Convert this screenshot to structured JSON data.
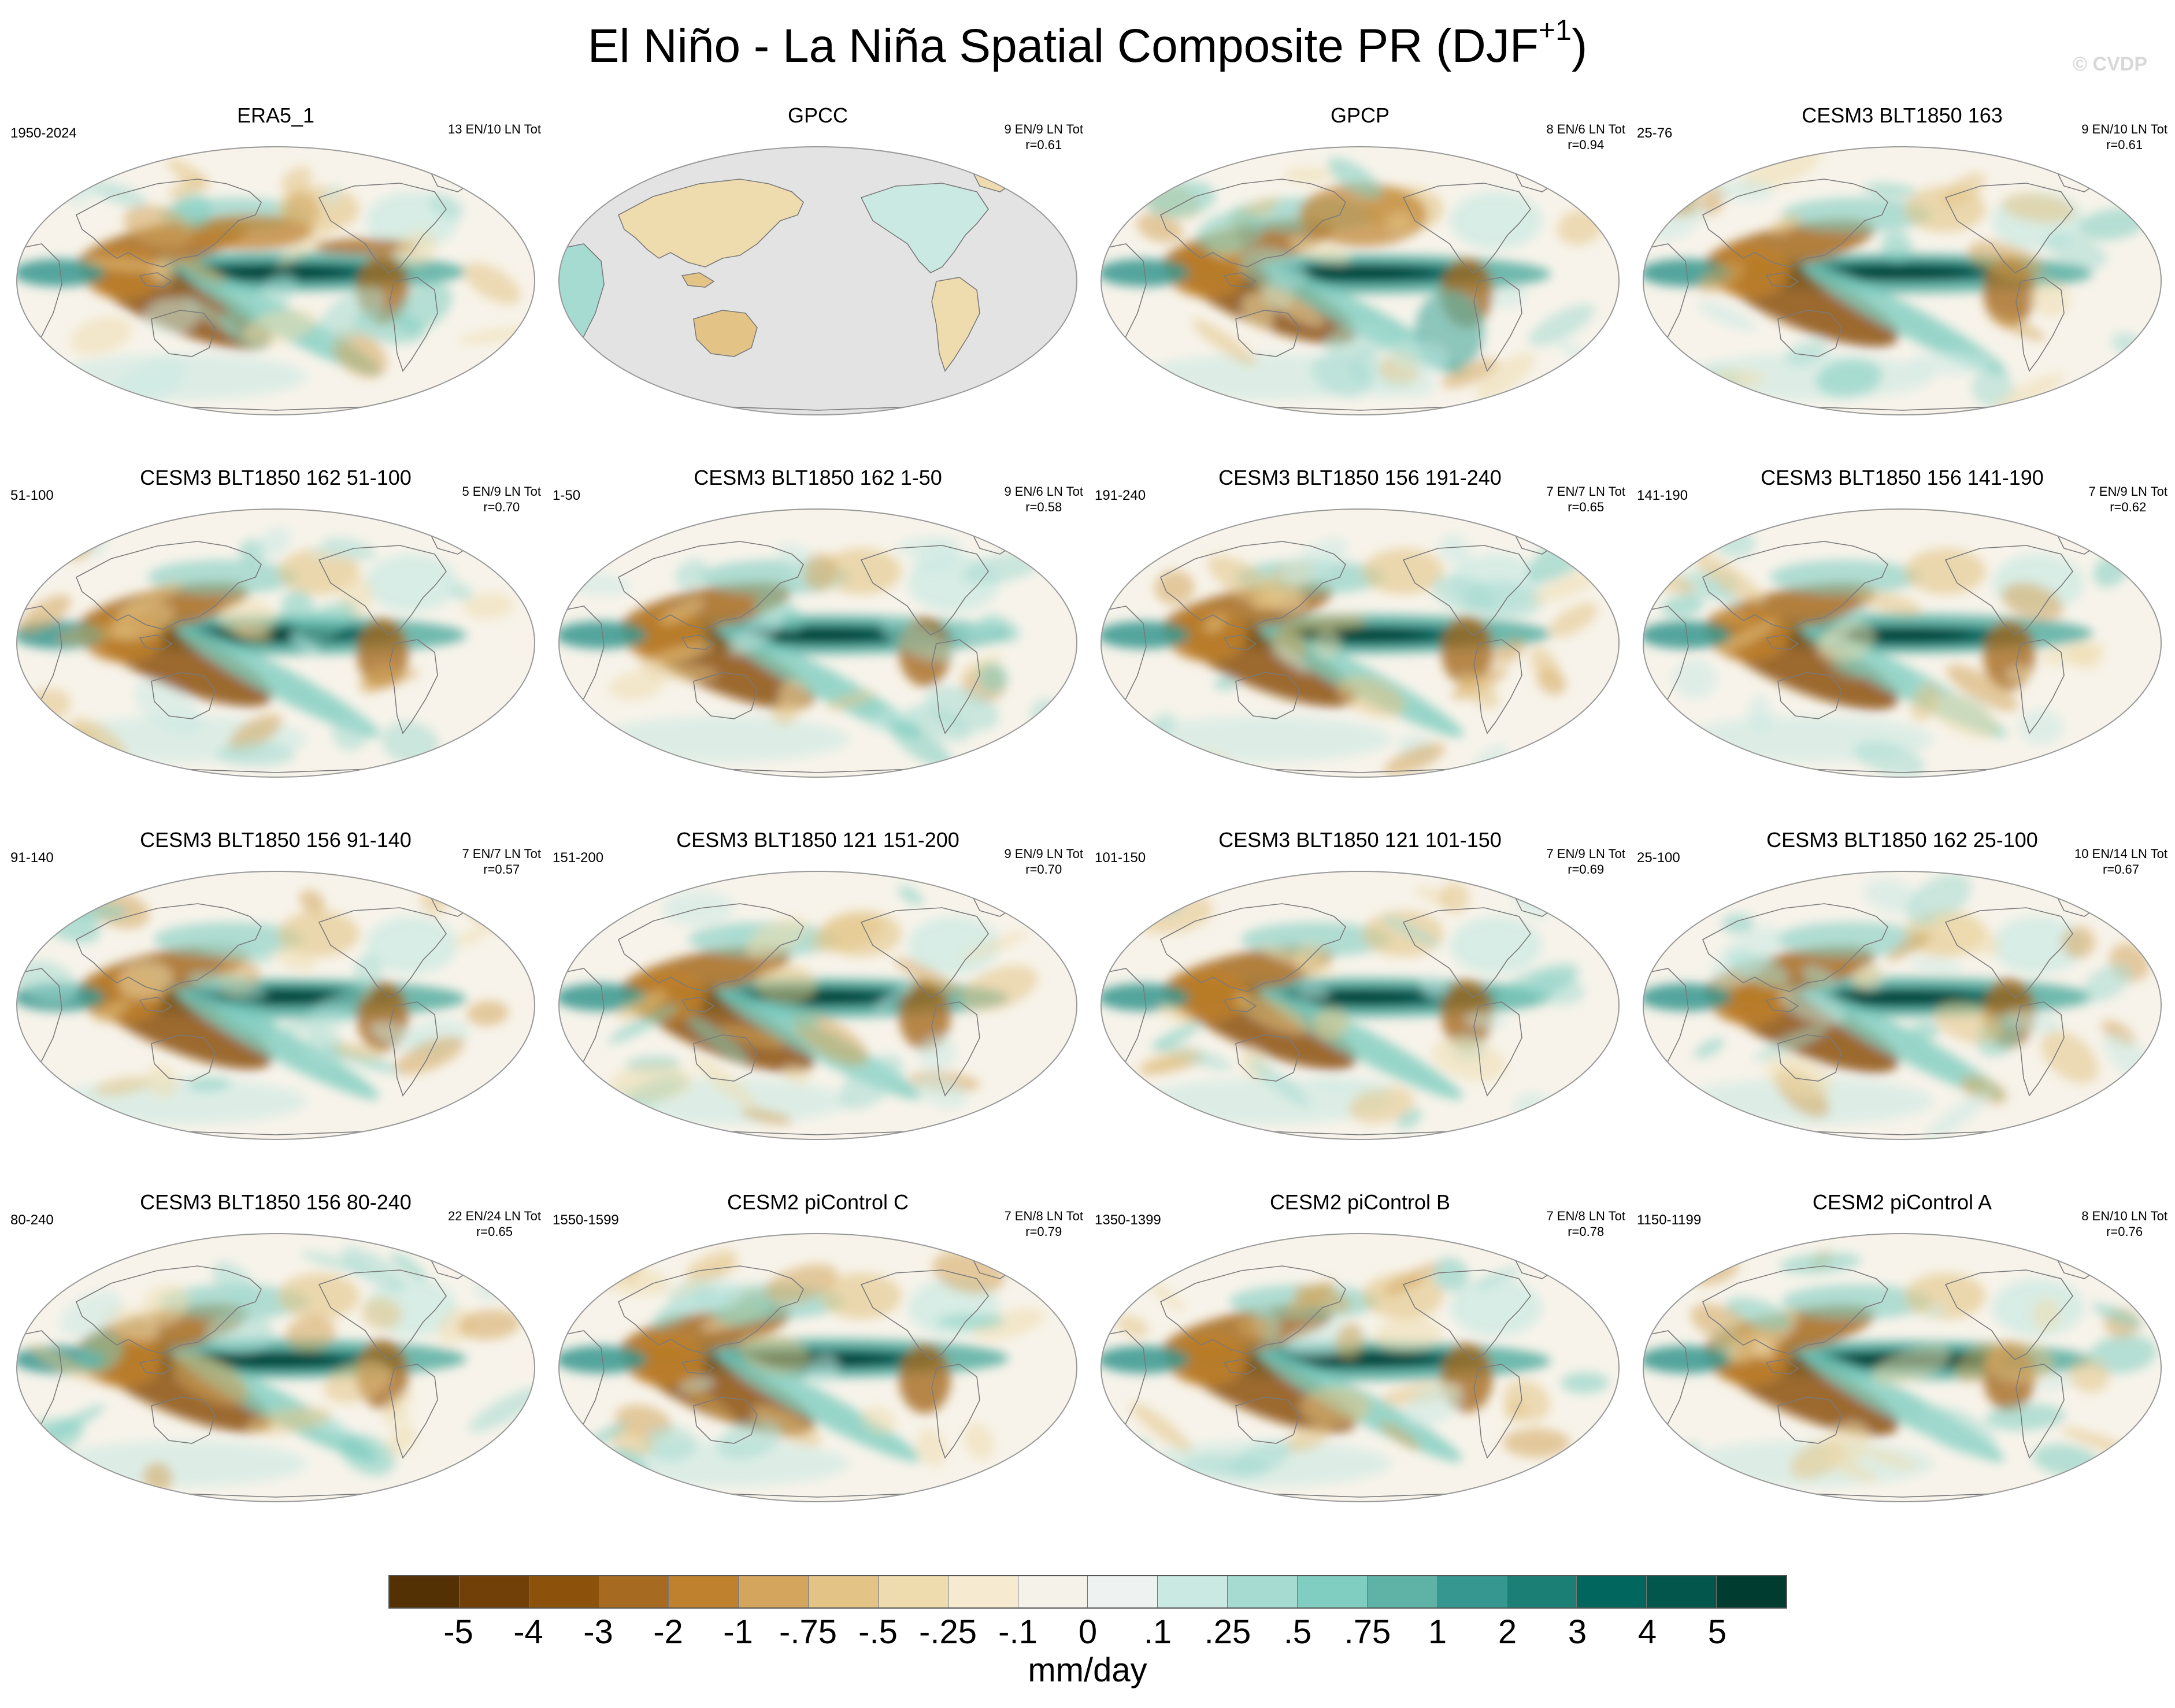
{
  "title": {
    "text": "El Niño - La Niña Spatial Composite PR (DJF",
    "sup": "+1",
    "close": ")"
  },
  "watermark": "© CVDP",
  "colors": {
    "ocean": "#f7f3ea",
    "land_missing": "#e3e3e3",
    "coast": "#7a7a7a",
    "outline": "#999999"
  },
  "panels": [
    {
      "title": "ERA5_1",
      "left": "1950-2024",
      "right": "13 EN/10 LN Tot",
      "r": "",
      "variant": "obs"
    },
    {
      "title": "GPCC",
      "left": "",
      "right": "9 EN/9 LN Tot",
      "r": "r=0.61",
      "variant": "land"
    },
    {
      "title": "GPCP",
      "left": "",
      "right": "8 EN/6 LN Tot",
      "r": "r=0.94",
      "variant": "obs2"
    },
    {
      "title": "CESM3 BLT1850 163",
      "left": "25-76",
      "right": "9 EN/10 LN Tot",
      "r": "r=0.61",
      "variant": "model"
    },
    {
      "title": "CESM3 BLT1850 162 51-100",
      "left": "51-100",
      "right": "5 EN/9 LN Tot",
      "r": "r=0.70",
      "variant": "model"
    },
    {
      "title": "CESM3 BLT1850 162 1-50",
      "left": "1-50",
      "right": "9 EN/6 LN Tot",
      "r": "r=0.58",
      "variant": "model"
    },
    {
      "title": "CESM3 BLT1850 156 191-240",
      "left": "191-240",
      "right": "7 EN/7 LN Tot",
      "r": "r=0.65",
      "variant": "model"
    },
    {
      "title": "CESM3 BLT1850 156 141-190",
      "left": "141-190",
      "right": "7 EN/9 LN Tot",
      "r": "r=0.62",
      "variant": "model"
    },
    {
      "title": "CESM3 BLT1850 156 91-140",
      "left": "91-140",
      "right": "7 EN/7 LN Tot",
      "r": "r=0.57",
      "variant": "model"
    },
    {
      "title": "CESM3 BLT1850 121 151-200",
      "left": "151-200",
      "right": "9 EN/9 LN Tot",
      "r": "r=0.70",
      "variant": "model"
    },
    {
      "title": "CESM3 BLT1850 121 101-150",
      "left": "101-150",
      "right": "7 EN/9 LN Tot",
      "r": "r=0.69",
      "variant": "model"
    },
    {
      "title": "CESM3 BLT1850 162 25-100",
      "left": "25-100",
      "right": "10 EN/14 LN Tot",
      "r": "r=0.67",
      "variant": "model"
    },
    {
      "title": "CESM3 BLT1850 156 80-240",
      "left": "80-240",
      "right": "22 EN/24 LN Tot",
      "r": "r=0.65",
      "variant": "model"
    },
    {
      "title": "CESM2 piControl C",
      "left": "1550-1599",
      "right": "7 EN/8 LN Tot",
      "r": "r=0.79",
      "variant": "model"
    },
    {
      "title": "CESM2 piControl B",
      "left": "1350-1399",
      "right": "7 EN/8 LN Tot",
      "r": "r=0.78",
      "variant": "model"
    },
    {
      "title": "CESM2 piControl A",
      "left": "1150-1199",
      "right": "8 EN/10 LN Tot",
      "r": "r=0.76",
      "variant": "model"
    }
  ],
  "colorbar": {
    "colors": [
      "#543005",
      "#714009",
      "#8c510a",
      "#a66b21",
      "#bf812d",
      "#d4a55d",
      "#e3c486",
      "#efdcae",
      "#f6ebd0",
      "#f5f2ea",
      "#eef3f1",
      "#cbe9e3",
      "#a5dbd1",
      "#80cdc1",
      "#5fb2a6",
      "#35978f",
      "#1c7f76",
      "#01665e",
      "#02564c",
      "#003c30"
    ],
    "ticks": [
      "-5",
      "-4",
      "-3",
      "-2",
      "-1",
      "-.75",
      "-.5",
      "-.25",
      "-.1",
      "0",
      ".1",
      ".25",
      ".5",
      ".75",
      "1",
      "2",
      "3",
      "4",
      "5"
    ],
    "units": "mm/day"
  }
}
